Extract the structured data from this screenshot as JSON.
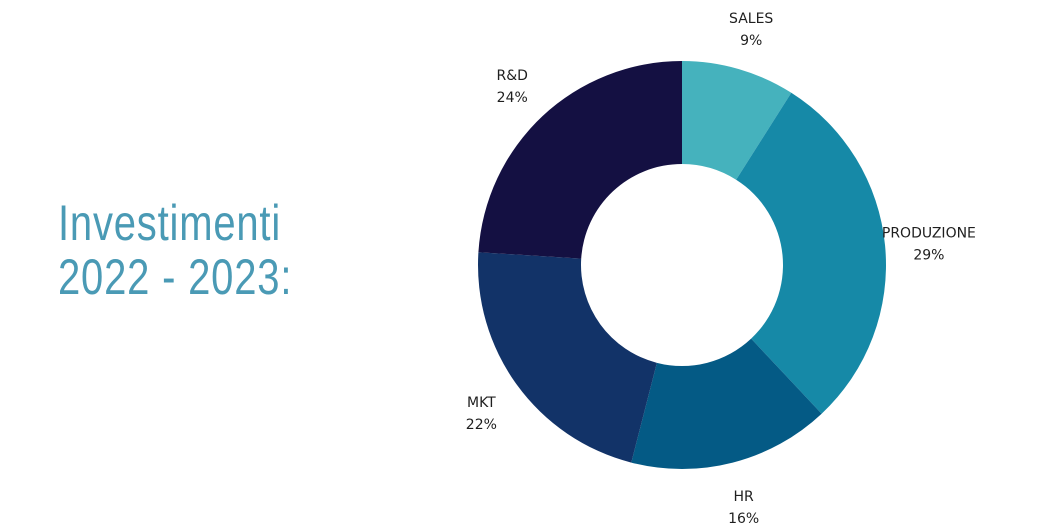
{
  "title": {
    "line1": "Investimenti",
    "line2": "2022 - 2023:"
  },
  "chart_data": {
    "type": "pie",
    "variant": "donut",
    "slices": [
      {
        "label": "SALES",
        "value": 9,
        "display": "9%",
        "color": "#45b2bd"
      },
      {
        "label": "PRODUZIONE",
        "value": 29,
        "display": "29%",
        "color": "#1689a7"
      },
      {
        "label": "HR",
        "value": 16,
        "display": "16%",
        "color": "#045a85"
      },
      {
        "label": "MKT",
        "value": 22,
        "display": "22%",
        "color": "#123368"
      },
      {
        "label": "R&D",
        "value": 24,
        "display": "24%",
        "color": "#141042"
      }
    ]
  }
}
